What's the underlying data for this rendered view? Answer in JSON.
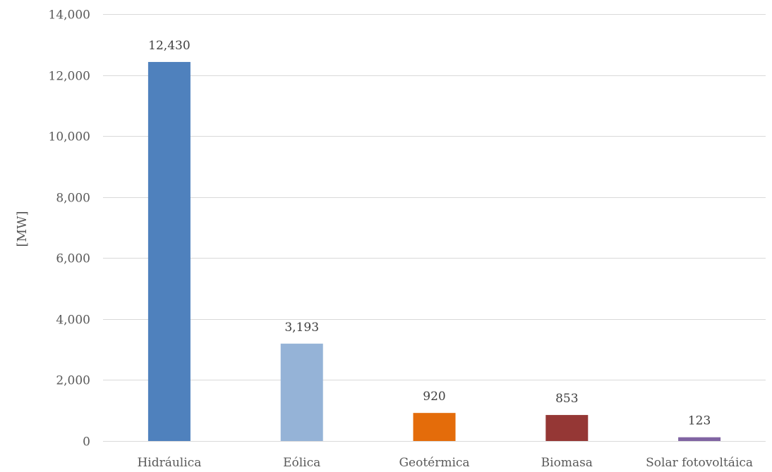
{
  "chart_data": {
    "type": "bar",
    "title": "",
    "xlabel": "",
    "ylabel": "[MW]",
    "categories": [
      "Hidráulica",
      "Eólica",
      "Geotérmica",
      "Biomasa",
      "Solar fotovoltáica"
    ],
    "values": [
      12430,
      3193,
      920,
      853,
      123
    ],
    "value_labels": [
      "12,430",
      "3,193",
      "920",
      "853",
      "123"
    ],
    "colors": [
      "#4f81bd",
      "#95b3d7",
      "#e46c0a",
      "#953735",
      "#8064a2"
    ],
    "ylim": [
      0,
      14000
    ],
    "yticks": [
      0,
      2000,
      4000,
      6000,
      8000,
      10000,
      12000,
      14000
    ],
    "ytick_labels": [
      "0",
      "2,000",
      "4,000",
      "6,000",
      "8,000",
      "10,000",
      "12,000",
      "14,000"
    ],
    "grid": true,
    "legend": "none"
  }
}
